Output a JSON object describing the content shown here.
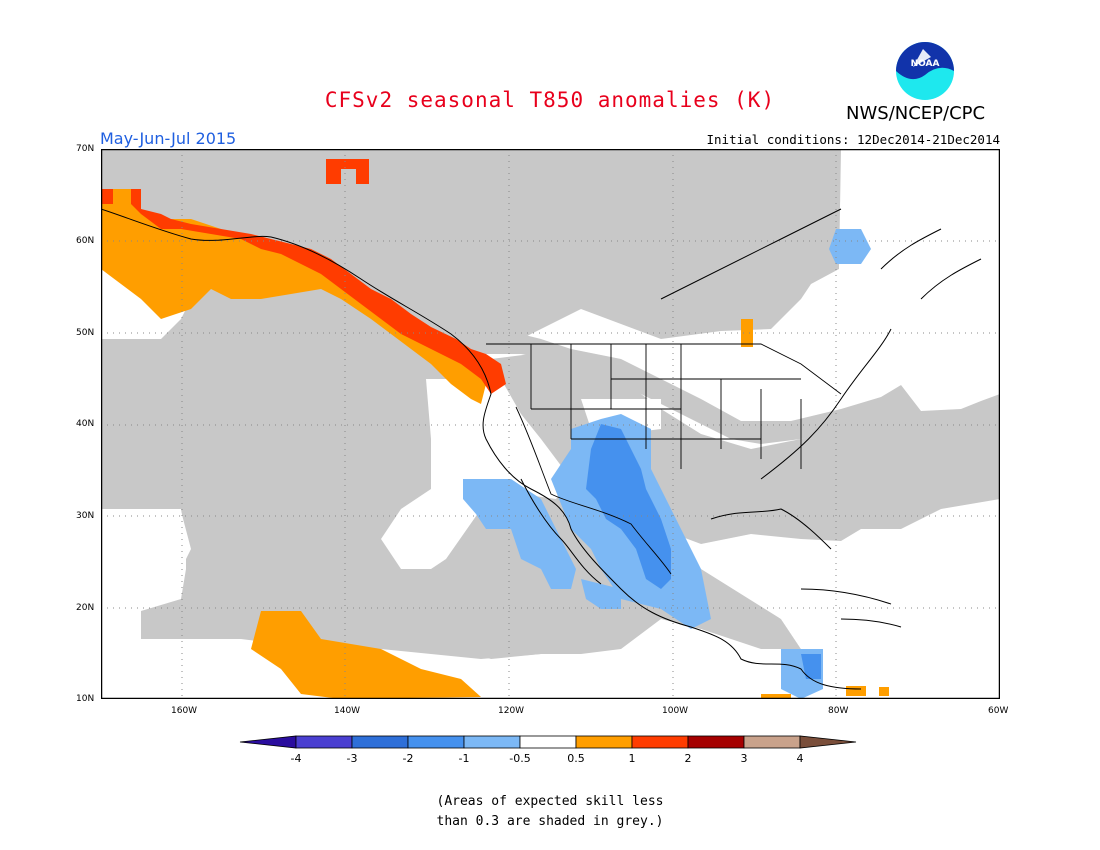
{
  "title": "CFSv2 seasonal T850 anomalies (K)",
  "agency": "NWS/NCEP/CPC",
  "logo_text": "NOAA",
  "season": "May-Jun-Jul 2015",
  "initial_conditions": "Initial conditions: 12Dec2014-21Dec2014",
  "lat_labels": [
    "70N",
    "60N",
    "50N",
    "40N",
    "30N",
    "20N",
    "10N"
  ],
  "lon_labels": [
    "160W",
    "140W",
    "120W",
    "100W",
    "80W",
    "60W"
  ],
  "colorbar": {
    "labels": [
      "-4",
      "-3",
      "-2",
      "-1",
      "-0.5",
      "0.5",
      "1",
      "2",
      "3",
      "4"
    ],
    "colors": [
      "#2a0d9e",
      "#4a3fd1",
      "#2e6fd8",
      "#4591ee",
      "#7cb8f5",
      "#ffffff",
      "#ff9e00",
      "#ff3c00",
      "#a50000",
      "#c9a28b",
      "#7a4e3a"
    ]
  },
  "note_line1": "(Areas of expected skill less",
  "note_line2": "than 0.3 are shaded in grey.)",
  "colors": {
    "grey": "#c8c8c8",
    "title": "#e8001c",
    "season": "#1f5fe0"
  }
}
